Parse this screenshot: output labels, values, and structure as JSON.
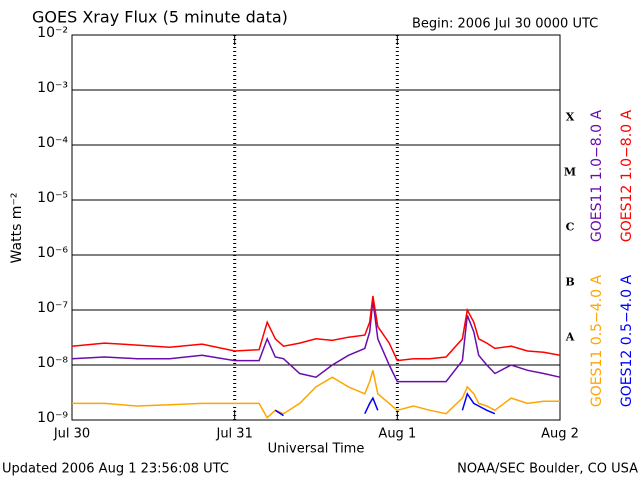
{
  "chart_data": {
    "type": "line",
    "title": "GOES Xray Flux (5 minute data)",
    "subtitle": "Begin:  2006 Jul 30 0000 UTC",
    "xlabel": "Universal Time",
    "ylabel": "Watts m⁻²",
    "footer_left": "Updated 2006 Aug  1 23:56:08 UTC",
    "footer_right": "NOAA/SEC Boulder, CO USA",
    "log_y": true,
    "grid": true,
    "xlim": [
      0,
      3
    ],
    "ylim": [
      1e-09,
      0.01
    ],
    "xticks": [
      {
        "value": 0,
        "label": "Jul 30"
      },
      {
        "value": 1,
        "label": "Jul 31"
      },
      {
        "value": 2,
        "label": "Aug 1"
      },
      {
        "value": 3,
        "label": "Aug 2"
      }
    ],
    "yticks": [
      {
        "value": 1e-09,
        "label": "10⁻⁹"
      },
      {
        "value": 1e-08,
        "label": "10⁻⁸"
      },
      {
        "value": 1e-07,
        "label": "10⁻⁷"
      },
      {
        "value": 1e-06,
        "label": "10⁻⁶"
      },
      {
        "value": 1e-05,
        "label": "10⁻⁵"
      },
      {
        "value": 0.0001,
        "label": "10⁻⁴"
      },
      {
        "value": 0.001,
        "label": "10⁻³"
      },
      {
        "value": 0.01,
        "label": "10⁻²"
      }
    ],
    "flare_classes": [
      {
        "value": 1e-08,
        "label": "A"
      },
      {
        "value": 1e-07,
        "label": "B"
      },
      {
        "value": 1e-06,
        "label": "C"
      },
      {
        "value": 1e-05,
        "label": "M"
      },
      {
        "value": 0.0001,
        "label": "X"
      }
    ],
    "x": [
      0,
      0.2,
      0.4,
      0.6,
      0.8,
      1.0,
      1.15,
      1.2,
      1.25,
      1.3,
      1.4,
      1.5,
      1.6,
      1.7,
      1.8,
      1.83,
      1.85,
      1.88,
      1.95,
      2.0,
      2.1,
      2.2,
      2.3,
      2.4,
      2.43,
      2.47,
      2.5,
      2.55,
      2.6,
      2.7,
      2.8,
      2.9,
      3.0
    ],
    "series": [
      {
        "name": "GOES11 1.0−8.0 A",
        "color": "#6a0dad",
        "values": [
          1.3e-08,
          1.4e-08,
          1.3e-08,
          1.3e-08,
          1.5e-08,
          1.2e-08,
          1.2e-08,
          3e-08,
          1.4e-08,
          1.3e-08,
          7e-09,
          6e-09,
          1e-08,
          1.5e-08,
          2e-08,
          4e-08,
          1.5e-07,
          3e-08,
          1e-08,
          5e-09,
          5e-09,
          5e-09,
          5e-09,
          1.2e-08,
          8e-08,
          4e-08,
          1.5e-08,
          1e-08,
          7e-09,
          1e-08,
          8e-09,
          7e-09,
          6e-09
        ]
      },
      {
        "name": "GOES12 1.0−8.0 A",
        "color": "#ff0000",
        "values": [
          2.2e-08,
          2.5e-08,
          2.3e-08,
          2.1e-08,
          2.4e-08,
          1.8e-08,
          1.9e-08,
          6e-08,
          3e-08,
          2.2e-08,
          2.5e-08,
          3e-08,
          2.8e-08,
          3.2e-08,
          3.5e-08,
          6e-08,
          1.8e-07,
          5e-08,
          2.5e-08,
          1.2e-08,
          1.3e-08,
          1.3e-08,
          1.4e-08,
          3e-08,
          1e-07,
          6e-08,
          3e-08,
          2.5e-08,
          2e-08,
          2.2e-08,
          1.8e-08,
          1.7e-08,
          1.5e-08
        ]
      },
      {
        "name": "GOES11 0.5−4.0 A",
        "color": "#ffa500",
        "values": [
          2e-09,
          2e-09,
          1.8e-09,
          1.9e-09,
          2e-09,
          2e-09,
          2e-09,
          1.1e-09,
          1.5e-09,
          1.3e-09,
          2e-09,
          4e-09,
          6e-09,
          4e-09,
          3e-09,
          5e-09,
          8e-09,
          3e-09,
          2e-09,
          1.5e-09,
          1.8e-09,
          1.5e-09,
          1.3e-09,
          2.5e-09,
          4e-09,
          3e-09,
          2e-09,
          1.8e-09,
          1.5e-09,
          2.5e-09,
          2e-09,
          2.2e-09,
          2.2e-09
        ]
      },
      {
        "name": "GOES12 0.5−4.0 A",
        "color": "#0000ff",
        "values": [
          null,
          null,
          null,
          null,
          null,
          null,
          null,
          null,
          1.5e-09,
          1.2e-09,
          null,
          null,
          null,
          null,
          1.3e-09,
          2e-09,
          2.5e-09,
          1.5e-09,
          null,
          null,
          null,
          null,
          null,
          1.5e-09,
          3e-09,
          2e-09,
          1.8e-09,
          1.5e-09,
          1.3e-09,
          null,
          null,
          null,
          null
        ]
      }
    ]
  }
}
